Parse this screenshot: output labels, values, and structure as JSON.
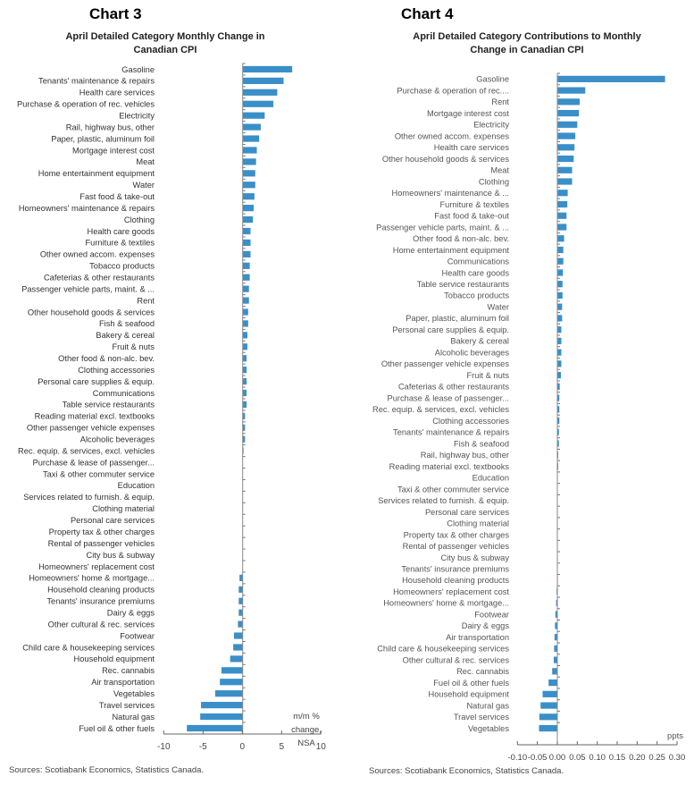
{
  "chart_data": [
    {
      "type": "bar",
      "orientation": "horizontal",
      "chart_label": "Chart 3",
      "title": "April Detailed Category Monthly Change in Canadian CPI",
      "unit_label": "m/m % change, NSA",
      "xlim": [
        -10,
        10
      ],
      "ticks": [
        "-10",
        "-5",
        "0",
        "5",
        "10"
      ],
      "tick_values": [
        -10,
        -5,
        0,
        5,
        10
      ],
      "bar_color": "#3a8fc8",
      "source": "Sources: Scotiabank Economics, Statistics Canada.",
      "categories": [
        "Gasoline",
        "Tenants' maintenance & repairs",
        "Health care services",
        "Purchase & operation of rec. vehicles",
        "Electricity",
        "Rail, highway bus, other",
        "Paper, plastic, aluminum foil",
        "Mortgage interest cost",
        "Meat",
        "Home entertainment equipment",
        "Water",
        "Fast food & take-out",
        "Homeowners' maintenance & repairs",
        "Clothing",
        "Health care goods",
        "Furniture & textiles",
        "Other owned accom. expenses",
        "Tobacco products",
        "Cafeterias & other restaurants",
        "Passenger vehicle parts, maint. & ...",
        "Rent",
        "Other household goods & services",
        "Fish & seafood",
        "Bakery & cereal",
        "Fruit & nuts",
        "Other food & non-alc. bev.",
        "Clothing accessories",
        "Personal care supplies & equip.",
        "Communications",
        "Table service restaurants",
        "Reading material excl. textbooks",
        "Other passenger vehicle expenses",
        "Alcoholic beverages",
        "Rec. equip. & services, excl. vehicles",
        "Purchase & lease of passenger...",
        "Taxi & other commuter service",
        "Education",
        "Services related to furnish. & equip.",
        "Clothing material",
        "Personal care services",
        "Property tax & other charges",
        "Rental of passenger vehicles",
        "City bus & subway",
        "Homeowners' replacement cost",
        "Homeowners' home & mortgage...",
        "Household cleaning products",
        "Tenants' insurance premiums",
        "Dairy & eggs",
        "Other cultural & rec. services",
        "Footwear",
        "Child care & housekeeping services",
        "Household equipment",
        "Rec. cannabis",
        "Air transportation",
        "Vegetables",
        "Travel services",
        "Natural gas",
        "Fuel oil & other fuels"
      ],
      "values": [
        6.3,
        5.2,
        4.4,
        3.9,
        2.8,
        2.3,
        2.1,
        1.8,
        1.7,
        1.6,
        1.6,
        1.5,
        1.4,
        1.3,
        1.0,
        1.0,
        1.0,
        0.9,
        0.9,
        0.8,
        0.8,
        0.7,
        0.7,
        0.6,
        0.6,
        0.5,
        0.5,
        0.5,
        0.5,
        0.5,
        0.3,
        0.3,
        0.3,
        0.1,
        0,
        0,
        0,
        0,
        0,
        0,
        0,
        0,
        0,
        0,
        -0.4,
        -0.5,
        -0.5,
        -0.5,
        -0.6,
        -1.1,
        -1.2,
        -1.6,
        -2.7,
        -2.9,
        -3.5,
        -5.3,
        -5.4,
        -7.1
      ]
    },
    {
      "type": "bar",
      "orientation": "horizontal",
      "chart_label": "Chart 4",
      "title": "April Detailed Category Contributions to Monthly Change in Canadian CPI",
      "unit_label": "ppts",
      "xlim": [
        -0.1,
        0.3
      ],
      "ticks": [
        "-0.10",
        "-0.05",
        "0.00",
        "0.05",
        "0.10",
        "0.15",
        "0.20",
        "0.25",
        "0.30"
      ],
      "tick_values": [
        -0.1,
        -0.05,
        0,
        0.05,
        0.1,
        0.15,
        0.2,
        0.25,
        0.3
      ],
      "bar_color": "#3a8fc8",
      "source": "Sources: Scotiabank Economics, Statistics Canada.",
      "categories": [
        "Gasoline",
        "Purchase & operation of rec....",
        "Rent",
        "Mortgage interest cost",
        "Electricity",
        "Other owned accom. expenses",
        "Health care services",
        "Other household goods & services",
        "Meat",
        "Clothing",
        "Homeowners' maintenance & ...",
        "Furniture & textiles",
        "Fast food & take-out",
        "Passenger vehicle parts, maint. & ...",
        "Other food & non-alc. bev.",
        "Home entertainment equipment",
        "Communications",
        "Health care goods",
        "Table service restaurants",
        "Tobacco products",
        "Water",
        "Paper, plastic, aluminum foil",
        "Personal care supplies & equip.",
        "Bakery & cereal",
        "Alcoholic beverages",
        "Other passenger vehicle expenses",
        "Fruit & nuts",
        "Cafeterias & other restaurants",
        "Purchase & lease of passenger...",
        "Rec. equip. & services, excl. vehicles",
        "Clothing accessories",
        "Tenants' maintenance & repairs",
        "Fish & seafood",
        "Rail, highway bus, other",
        "Reading material excl. textbooks",
        "Education",
        "Taxi & other commuter service",
        "Services related to furnish. & equip.",
        "Personal care services",
        "Clothing material",
        "Property tax & other charges",
        "Rental of passenger vehicles",
        "City bus & subway",
        "Tenants' insurance premiums",
        "Household cleaning products",
        "Homeowners' replacement cost",
        "Homeowners' home & mortgage...",
        "Footwear",
        "Dairy & eggs",
        "Air transportation",
        "Child care & housekeeping services",
        "Other cultural & rec. services",
        "Rec. cannabis",
        "Fuel oil & other fuels",
        "Household equipment",
        "Natural gas",
        "Travel services",
        "Vegetables"
      ],
      "values": [
        0.27,
        0.07,
        0.056,
        0.054,
        0.05,
        0.045,
        0.043,
        0.041,
        0.037,
        0.037,
        0.026,
        0.025,
        0.023,
        0.023,
        0.017,
        0.015,
        0.015,
        0.014,
        0.013,
        0.013,
        0.012,
        0.012,
        0.01,
        0.01,
        0.01,
        0.01,
        0.009,
        0.006,
        0.005,
        0.005,
        0.005,
        0.004,
        0.004,
        0.002,
        0.001,
        0,
        0,
        0,
        0,
        0,
        0,
        0,
        0,
        0,
        -0.001,
        -0.002,
        -0.003,
        -0.005,
        -0.006,
        -0.007,
        -0.008,
        -0.009,
        -0.013,
        -0.022,
        -0.037,
        -0.042,
        -0.045,
        -0.046
      ]
    }
  ]
}
